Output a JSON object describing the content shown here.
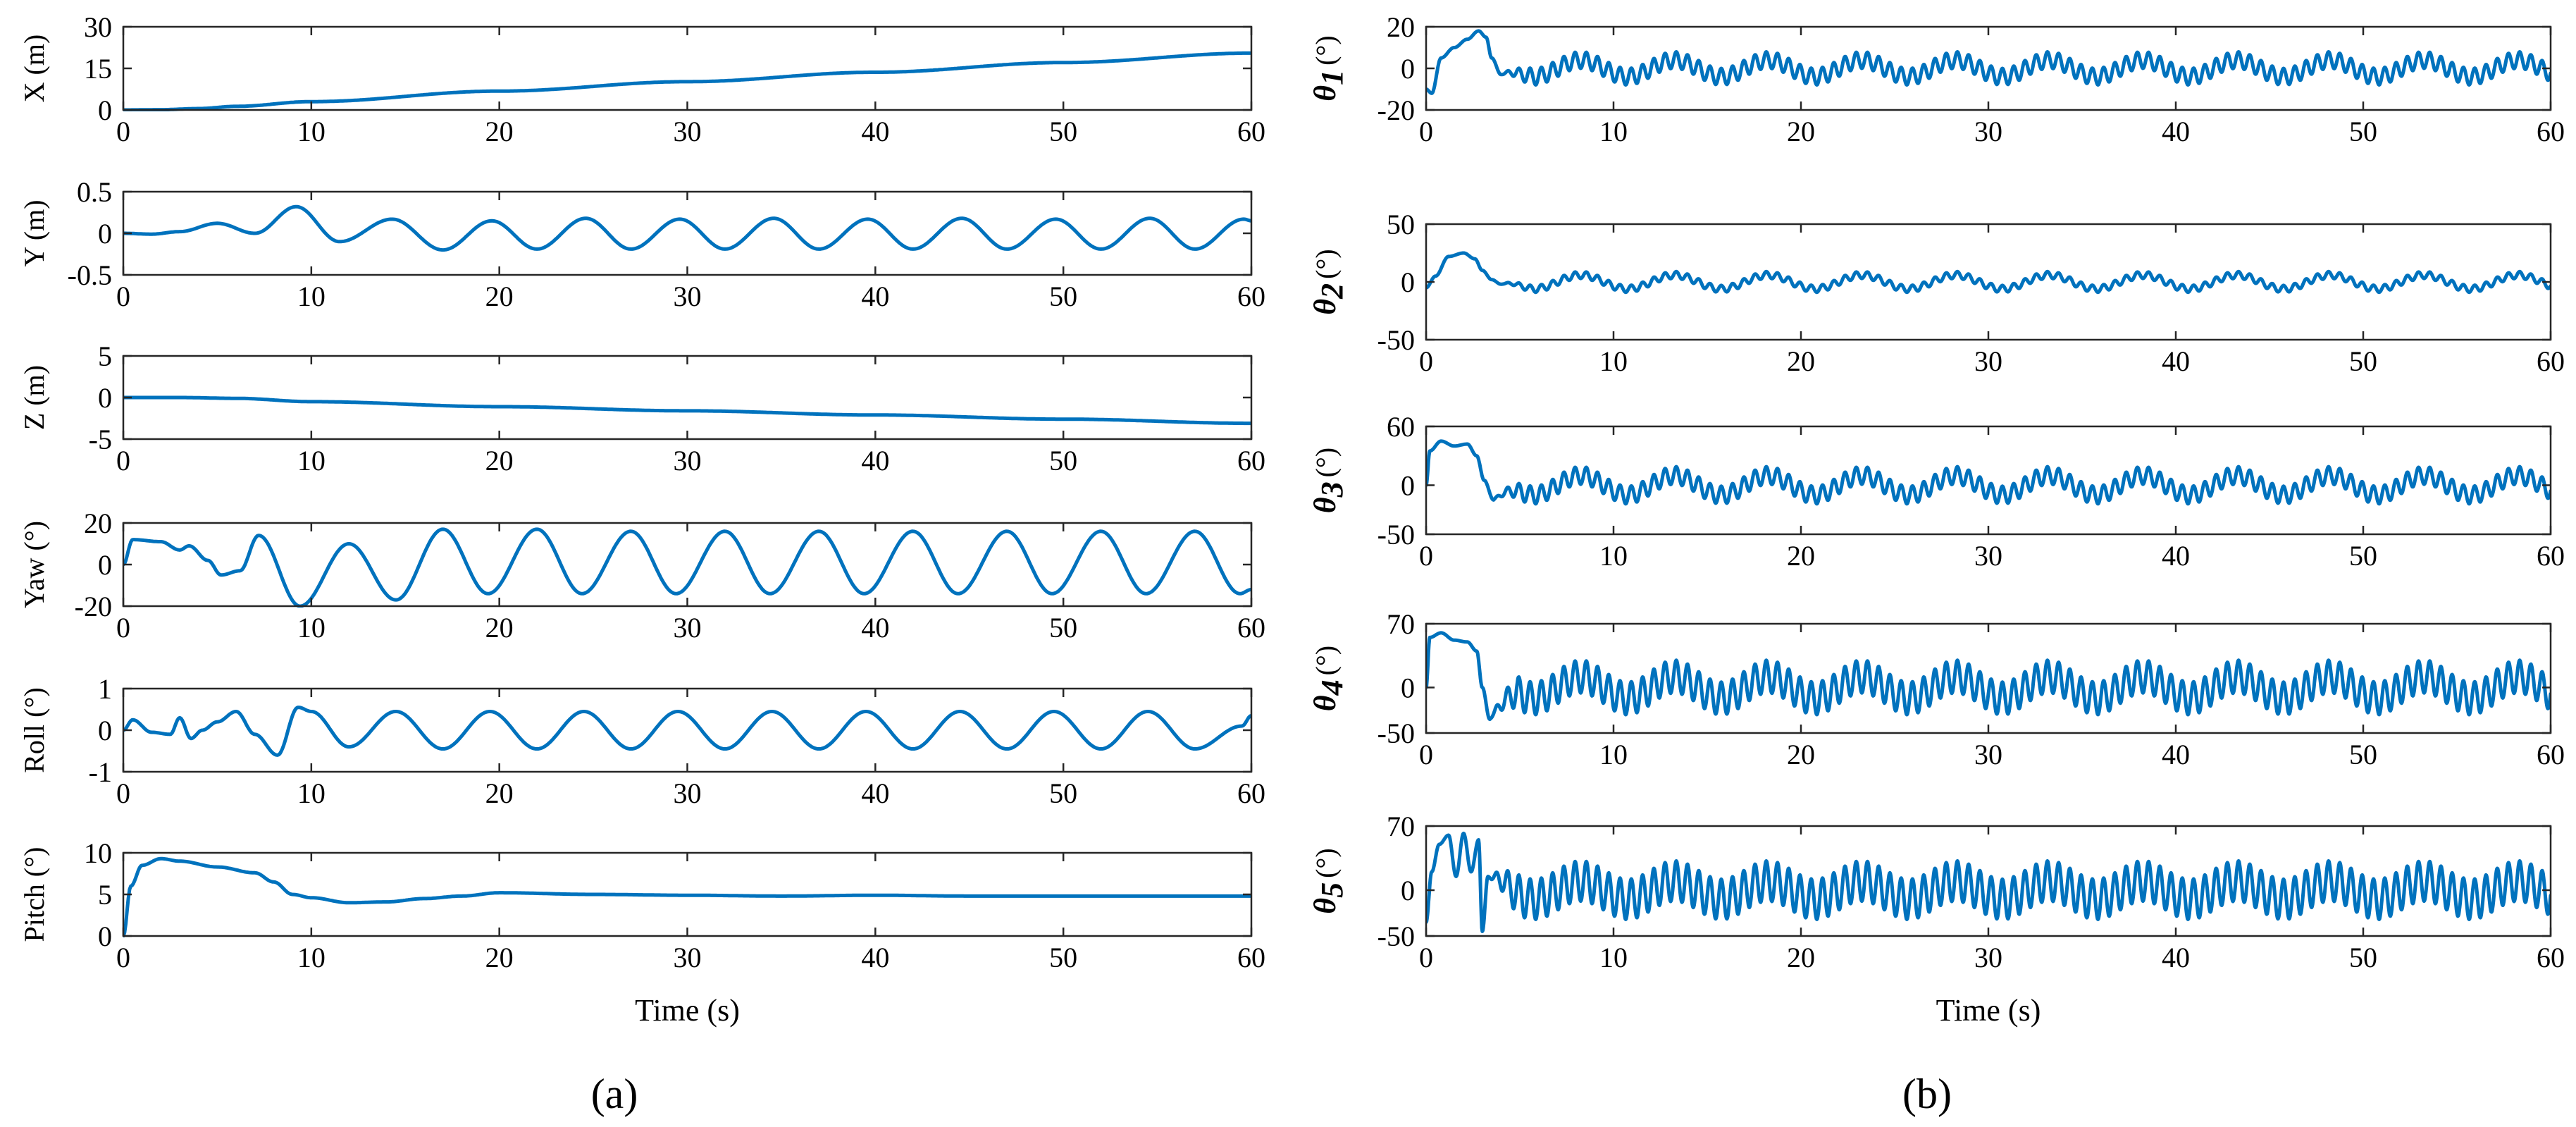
{
  "figure": {
    "panel_a_label": "(a)",
    "panel_b_label": "(b)",
    "line_color": "#0072BD"
  },
  "chart_data": [
    {
      "type": "line",
      "panel": "a",
      "ylabel": "X (m)",
      "xlabel": "",
      "xlim": [
        0,
        60
      ],
      "ylim": [
        0,
        30
      ],
      "xticks": [
        0,
        10,
        20,
        30,
        40,
        50,
        60
      ],
      "yticks": [
        0,
        15,
        30
      ],
      "x": [
        0,
        2,
        4,
        6,
        10,
        20,
        30,
        40,
        50,
        60
      ],
      "y": [
        0,
        0.1,
        0.5,
        1.3,
        3.0,
        6.8,
        10.2,
        13.6,
        17.1,
        20.5
      ]
    },
    {
      "type": "line",
      "panel": "a",
      "ylabel": "Y (m)",
      "xlabel": "",
      "xlim": [
        0,
        60
      ],
      "ylim": [
        -0.5,
        0.5
      ],
      "xticks": [
        0,
        10,
        20,
        30,
        40,
        50,
        60
      ],
      "yticks": [
        -0.5,
        0,
        0.5
      ],
      "x": [
        0,
        1.5,
        3,
        5,
        7,
        9.2,
        11.5,
        14.3,
        17,
        19.6,
        22,
        24.6,
        27,
        29.6,
        32,
        34.6,
        37,
        39.6,
        42,
        44.6,
        47,
        49.6,
        52,
        54.6,
        57,
        59.6,
        60
      ],
      "y": [
        0,
        -0.01,
        0.02,
        0.12,
        0.0,
        0.32,
        -0.1,
        0.17,
        -0.2,
        0.15,
        -0.19,
        0.18,
        -0.19,
        0.17,
        -0.19,
        0.18,
        -0.19,
        0.17,
        -0.19,
        0.18,
        -0.19,
        0.17,
        -0.19,
        0.18,
        -0.19,
        0.17,
        0.15
      ]
    },
    {
      "type": "line",
      "panel": "a",
      "ylabel": "Z (m)",
      "xlabel": "",
      "xlim": [
        0,
        60
      ],
      "ylim": [
        -5,
        5
      ],
      "xticks": [
        0,
        10,
        20,
        30,
        40,
        50,
        60
      ],
      "yticks": [
        -5,
        0,
        5
      ],
      "x": [
        0,
        3,
        6,
        10,
        20,
        30,
        40,
        50,
        60
      ],
      "y": [
        0,
        0,
        -0.1,
        -0.5,
        -1.1,
        -1.6,
        -2.1,
        -2.6,
        -3.1
      ]
    },
    {
      "type": "line",
      "panel": "a",
      "ylabel": "Yaw (°)",
      "xlabel": "",
      "xlim": [
        0,
        60
      ],
      "ylim": [
        -20,
        20
      ],
      "xticks": [
        0,
        10,
        20,
        30,
        40,
        50,
        60
      ],
      "yticks": [
        -20,
        0,
        20
      ],
      "x": [
        0,
        0.5,
        2,
        3,
        3.5,
        4.5,
        5.2,
        6.2,
        7.2,
        9.4,
        12,
        14.5,
        17,
        19.4,
        22,
        24.4,
        27,
        29.4,
        32,
        34.4,
        37,
        39.4,
        42,
        44.4,
        47,
        49.4,
        52,
        54.4,
        57,
        59.4,
        60
      ],
      "y": [
        0,
        12,
        11,
        7,
        9,
        2,
        -5,
        -3,
        14,
        -20,
        10,
        -17,
        17,
        -14,
        17,
        -14,
        16,
        -14,
        16,
        -14,
        16,
        -14,
        16,
        -14,
        16,
        -14,
        16,
        -14,
        16,
        -14,
        -12
      ]
    },
    {
      "type": "line",
      "panel": "a",
      "ylabel": "Roll (°)",
      "xlabel": "",
      "xlim": [
        0,
        60
      ],
      "ylim": [
        -1,
        1
      ],
      "xticks": [
        0,
        10,
        20,
        30,
        40,
        50,
        60
      ],
      "yticks": [
        -1,
        0,
        1
      ],
      "x": [
        0,
        0.5,
        1.5,
        2.5,
        3,
        3.6,
        4.2,
        5,
        6,
        7,
        8.2,
        9.3,
        10,
        12,
        14.5,
        17,
        19.5,
        22,
        24.5,
        27,
        29.5,
        32,
        34.5,
        37,
        39.5,
        42,
        44.5,
        47,
        49.5,
        52,
        54.5,
        57,
        59.5,
        60
      ],
      "y": [
        0,
        0.25,
        -0.05,
        -0.1,
        0.3,
        -0.2,
        0.0,
        0.2,
        0.45,
        -0.1,
        -0.6,
        0.55,
        0.45,
        -0.4,
        0.45,
        -0.45,
        0.45,
        -0.45,
        0.45,
        -0.45,
        0.45,
        -0.45,
        0.45,
        -0.45,
        0.45,
        -0.45,
        0.45,
        -0.45,
        0.45,
        -0.45,
        0.45,
        -0.45,
        0.1,
        0.35
      ]
    },
    {
      "type": "line",
      "panel": "a",
      "ylabel": "Pitch (°)",
      "xlabel": "Time (s)",
      "xlim": [
        0,
        60
      ],
      "ylim": [
        0,
        10
      ],
      "xticks": [
        0,
        10,
        20,
        30,
        40,
        50,
        60
      ],
      "yticks": [
        0,
        5,
        10
      ],
      "x": [
        0,
        0.4,
        1,
        2,
        3,
        5,
        7,
        8,
        9,
        10,
        12,
        14,
        16,
        18,
        20,
        25,
        30,
        35,
        40,
        45,
        50,
        55,
        60
      ],
      "y": [
        0,
        6,
        8.5,
        9.3,
        9.0,
        8.3,
        7.6,
        6.5,
        5.0,
        4.6,
        4.0,
        4.1,
        4.5,
        4.8,
        5.2,
        5.0,
        4.9,
        4.8,
        4.9,
        4.8,
        4.8,
        4.8,
        4.8
      ]
    },
    {
      "type": "line",
      "panel": "b",
      "ylabel": "θ1 (°)",
      "xlabel": "",
      "xlim": [
        0,
        60
      ],
      "ylim": [
        -20,
        20
      ],
      "xticks": [
        0,
        10,
        20,
        30,
        40,
        50,
        60
      ],
      "yticks": [
        -20,
        0,
        20
      ],
      "transient_x": [
        0,
        0.3,
        0.8,
        1.5,
        2.2,
        2.8,
        3.2,
        3.5,
        4.0
      ],
      "transient_y": [
        -10,
        -12,
        5,
        10,
        14,
        18,
        15,
        5,
        -3
      ],
      "steady_period_s": 5,
      "steady_amplitude": 4,
      "ripple_period_s": 0.6,
      "ripple_amplitude": 4
    },
    {
      "type": "line",
      "panel": "b",
      "ylabel": "θ2 (°)",
      "xlabel": "",
      "xlim": [
        0,
        60
      ],
      "ylim": [
        -50,
        50
      ],
      "xticks": [
        0,
        10,
        20,
        30,
        40,
        50,
        60
      ],
      "yticks": [
        -50,
        0,
        50
      ],
      "transient_x": [
        0,
        0.5,
        1.2,
        2.0,
        2.6,
        3.0,
        3.5,
        4.0
      ],
      "transient_y": [
        -5,
        5,
        22,
        25,
        20,
        10,
        2,
        -2
      ],
      "steady_period_s": 5,
      "steady_amplitude": 6,
      "ripple_period_s": 0.6,
      "ripple_amplitude": 3
    },
    {
      "type": "line",
      "panel": "b",
      "ylabel": "θ3 (°)",
      "xlabel": "",
      "xlim": [
        0,
        60
      ],
      "ylim": [
        -50,
        60
      ],
      "xticks": [
        0,
        10,
        20,
        30,
        40,
        50,
        60
      ],
      "yticks": [
        -50,
        0,
        60
      ],
      "transient_x": [
        0,
        0.2,
        0.8,
        1.5,
        2.2,
        2.7,
        3.1,
        3.6
      ],
      "transient_y": [
        0,
        35,
        45,
        40,
        42,
        30,
        5,
        -15
      ],
      "steady_period_s": 5,
      "steady_amplitude": 10,
      "ripple_period_s": 0.6,
      "ripple_amplitude": 9
    },
    {
      "type": "line",
      "panel": "b",
      "ylabel": "θ4 (°)",
      "xlabel": "",
      "xlim": [
        0,
        60
      ],
      "ylim": [
        -50,
        70
      ],
      "xticks": [
        0,
        10,
        20,
        30,
        40,
        50,
        60
      ],
      "yticks": [
        -50,
        0,
        70
      ],
      "transient_x": [
        0,
        0.2,
        0.8,
        1.5,
        2.2,
        2.7,
        3.0,
        3.4
      ],
      "transient_y": [
        0,
        55,
        60,
        52,
        50,
        40,
        0,
        -35
      ],
      "steady_period_s": 5,
      "steady_amplitude": 12,
      "ripple_period_s": 0.6,
      "ripple_amplitude": 18
    },
    {
      "type": "line",
      "panel": "b",
      "ylabel": "θ5 (°)",
      "xlabel": "Time (s)",
      "xlim": [
        0,
        60
      ],
      "ylim": [
        -50,
        70
      ],
      "xticks": [
        0,
        10,
        20,
        30,
        40,
        50,
        60
      ],
      "yticks": [
        -50,
        0,
        70
      ],
      "transient_x": [
        0,
        0.3,
        0.7,
        1.2,
        1.6,
        2.0,
        2.4,
        2.8,
        3.0,
        3.3
      ],
      "transient_y": [
        -35,
        20,
        50,
        60,
        15,
        62,
        20,
        55,
        -45,
        15
      ],
      "steady_period_s": 5,
      "steady_amplitude": 10,
      "ripple_period_s": 0.6,
      "ripple_amplitude": 22
    }
  ]
}
